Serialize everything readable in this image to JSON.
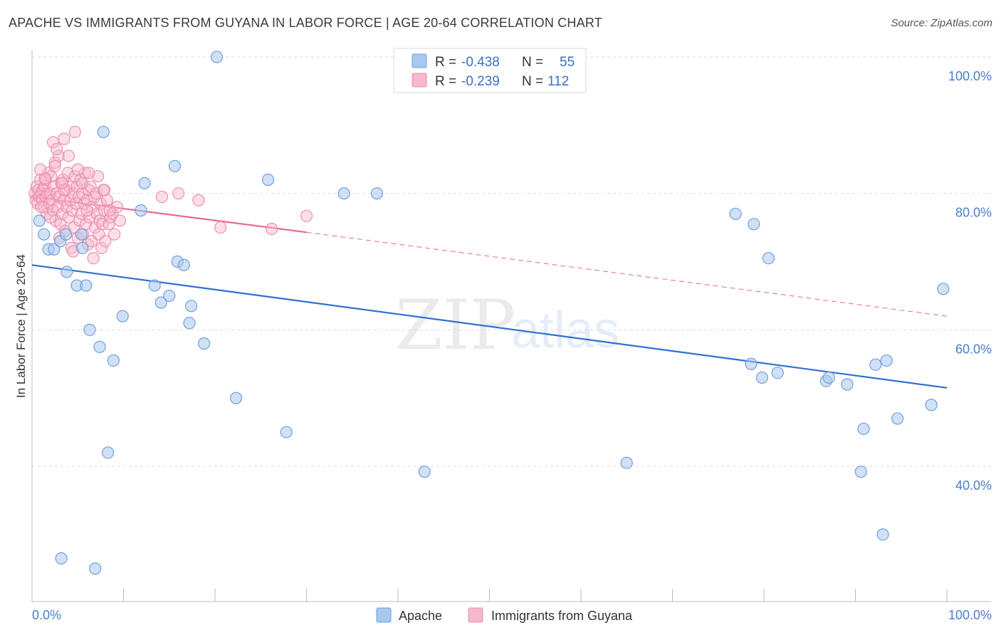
{
  "header": {
    "title": "APACHE VS IMMIGRANTS FROM GUYANA IN LABOR FORCE | AGE 20-64 CORRELATION CHART",
    "source": "Source: ZipAtlas.com"
  },
  "watermark": {
    "part1": "ZIP",
    "part2": "atlas"
  },
  "colors": {
    "apache_fill": "#a9c8f0",
    "apache_stroke": "#6f9fd8",
    "apache_line": "#2f6fcf",
    "guyana_fill": "#f6b8cb",
    "guyana_stroke": "#ec8fae",
    "guyana_line": "#e8679a",
    "grid": "#dddddd",
    "tick_text": "#4a7ccc"
  },
  "legend": {
    "rows": [
      {
        "r_label": "R = ",
        "r_value": "-0.438",
        "n_label": "N = ",
        "n_value": "55"
      },
      {
        "r_label": "R = ",
        "r_value": "-0.239",
        "n_label": "N = ",
        "n_value": "112"
      }
    ]
  },
  "bottom_legend": {
    "apache": "Apache",
    "guyana": "Immigrants from Guyana"
  },
  "chart_data": {
    "type": "scatter",
    "title": "APACHE VS IMMIGRANTS FROM GUYANA IN LABOR FORCE | AGE 20-64 CORRELATION CHART",
    "xlabel": "",
    "ylabel": "In Labor Force | Age 20-64",
    "xlim": [
      0,
      100
    ],
    "ylim": [
      22,
      102
    ],
    "x_tick_labels": [
      "0.0%",
      "100.0%"
    ],
    "y_ticks": [
      40,
      60,
      80,
      100
    ],
    "y_tick_labels": [
      "40.0%",
      "60.0%",
      "80.0%",
      "100.0%"
    ],
    "grid": true,
    "legend_position": "top-center",
    "series": [
      {
        "name": "Apache",
        "R": -0.438,
        "N": 55,
        "trend": {
          "x": [
            0,
            100
          ],
          "y": [
            69.5,
            51.5
          ],
          "extended": false
        },
        "points": [
          [
            0.8,
            76
          ],
          [
            1.3,
            74
          ],
          [
            1.8,
            71.8
          ],
          [
            2.4,
            71.8
          ],
          [
            3.1,
            73
          ],
          [
            3.7,
            74
          ],
          [
            3.8,
            68.5
          ],
          [
            4.9,
            66.5
          ],
          [
            5.9,
            66.5
          ],
          [
            5.4,
            74
          ],
          [
            5.5,
            72
          ],
          [
            6.3,
            60
          ],
          [
            7.4,
            57.5
          ],
          [
            7.8,
            89
          ],
          [
            8.3,
            42
          ],
          [
            8.9,
            55.5
          ],
          [
            9.9,
            62
          ],
          [
            11.9,
            77.5
          ],
          [
            12.3,
            81.5
          ],
          [
            13.4,
            66.5
          ],
          [
            14.1,
            64
          ],
          [
            15.0,
            65
          ],
          [
            15.6,
            84
          ],
          [
            15.9,
            70
          ],
          [
            16.6,
            69.5
          ],
          [
            17.2,
            61
          ],
          [
            17.4,
            63.5
          ],
          [
            18.8,
            58
          ],
          [
            20.2,
            100
          ],
          [
            22.3,
            50
          ],
          [
            25.8,
            82
          ],
          [
            27.8,
            45
          ],
          [
            34.1,
            80
          ],
          [
            37.7,
            80
          ],
          [
            42.9,
            39.2
          ],
          [
            65.0,
            40.5
          ],
          [
            76.9,
            77
          ],
          [
            78.6,
            55
          ],
          [
            78.9,
            75.5
          ],
          [
            79.8,
            53
          ],
          [
            80.5,
            70.5
          ],
          [
            81.5,
            53.7
          ],
          [
            86.8,
            52.5
          ],
          [
            87.1,
            53
          ],
          [
            89.1,
            52
          ],
          [
            90.6,
            39.2
          ],
          [
            90.9,
            45.5
          ],
          [
            92.2,
            54.9
          ],
          [
            93.0,
            30
          ],
          [
            93.4,
            55.5
          ],
          [
            94.6,
            47
          ],
          [
            98.3,
            49
          ],
          [
            99.6,
            66
          ],
          [
            3.2,
            26.5
          ],
          [
            6.9,
            25
          ]
        ]
      },
      {
        "name": "Immigrants from Guyana",
        "R": -0.239,
        "N": 112,
        "trend": {
          "x": [
            0,
            30,
            100
          ],
          "y": [
            79.5,
            74.3,
            62
          ],
          "extended_from": 30
        },
        "points": [
          [
            0.3,
            80
          ],
          [
            0.4,
            79
          ],
          [
            0.5,
            81
          ],
          [
            0.6,
            78.5
          ],
          [
            0.7,
            80.5
          ],
          [
            0.8,
            79.5
          ],
          [
            0.9,
            82
          ],
          [
            1.0,
            80
          ],
          [
            1.1,
            79
          ],
          [
            1.2,
            80.5
          ],
          [
            1.3,
            78
          ],
          [
            1.4,
            81
          ],
          [
            1.5,
            79.5
          ],
          [
            1.6,
            77
          ],
          [
            1.7,
            80
          ],
          [
            1.8,
            83
          ],
          [
            1.9,
            78.5
          ],
          [
            2.0,
            80
          ],
          [
            2.1,
            82.5
          ],
          [
            2.2,
            79
          ],
          [
            2.3,
            77.5
          ],
          [
            2.4,
            81
          ],
          [
            2.5,
            84.5
          ],
          [
            2.6,
            76
          ],
          [
            2.7,
            80
          ],
          [
            2.8,
            78
          ],
          [
            2.9,
            85.5
          ],
          [
            3.0,
            79.5
          ],
          [
            3.1,
            75.5
          ],
          [
            3.2,
            81.5
          ],
          [
            3.3,
            77
          ],
          [
            3.4,
            82
          ],
          [
            3.5,
            79
          ],
          [
            3.6,
            74.5
          ],
          [
            3.7,
            80.5
          ],
          [
            3.8,
            78
          ],
          [
            3.9,
            83
          ],
          [
            4.0,
            76.5
          ],
          [
            4.1,
            81
          ],
          [
            4.2,
            79
          ],
          [
            4.3,
            72
          ],
          [
            4.4,
            77.5
          ],
          [
            4.5,
            80
          ],
          [
            4.6,
            75
          ],
          [
            4.7,
            82.5
          ],
          [
            4.8,
            78.5
          ],
          [
            4.9,
            81
          ],
          [
            5.0,
            73.5
          ],
          [
            5.1,
            79.5
          ],
          [
            5.2,
            76
          ],
          [
            5.3,
            82
          ],
          [
            5.4,
            77
          ],
          [
            5.5,
            80
          ],
          [
            5.6,
            74
          ],
          [
            5.7,
            78.5
          ],
          [
            5.8,
            83
          ],
          [
            5.9,
            75.5
          ],
          [
            6.0,
            79
          ],
          [
            6.1,
            72.5
          ],
          [
            6.2,
            80.5
          ],
          [
            6.3,
            76.5
          ],
          [
            6.4,
            81
          ],
          [
            6.5,
            73
          ],
          [
            6.6,
            78
          ],
          [
            6.7,
            70.5
          ],
          [
            6.8,
            79.5
          ],
          [
            6.9,
            75
          ],
          [
            7.0,
            80
          ],
          [
            7.1,
            77
          ],
          [
            7.2,
            82.5
          ],
          [
            7.3,
            74
          ],
          [
            7.4,
            76
          ],
          [
            7.5,
            78.5
          ],
          [
            7.6,
            72
          ],
          [
            7.7,
            75.5
          ],
          [
            7.8,
            80.5
          ],
          [
            7.9,
            77.5
          ],
          [
            8.0,
            73
          ],
          [
            8.2,
            79
          ],
          [
            8.4,
            75.5
          ],
          [
            8.6,
            76.5
          ],
          [
            8.8,
            77
          ],
          [
            9.0,
            74
          ],
          [
            9.3,
            78
          ],
          [
            9.6,
            76
          ],
          [
            1.0,
            78
          ],
          [
            1.5,
            82
          ],
          [
            2.0,
            76.5
          ],
          [
            2.5,
            84
          ],
          [
            3.0,
            73.5
          ],
          [
            3.5,
            80.5
          ],
          [
            4.0,
            85.5
          ],
          [
            4.5,
            71.5
          ],
          [
            5.0,
            83.5
          ],
          [
            5.5,
            81.5
          ],
          [
            6.0,
            77.5
          ],
          [
            4.7,
            89
          ],
          [
            3.5,
            88
          ],
          [
            2.3,
            87.5
          ],
          [
            6.2,
            83
          ],
          [
            7.9,
            80.5
          ],
          [
            8.5,
            77.5
          ],
          [
            14.2,
            79.5
          ],
          [
            16.0,
            80
          ],
          [
            18.2,
            79
          ],
          [
            20.6,
            75
          ],
          [
            26.2,
            74.8
          ],
          [
            30.0,
            76.7
          ],
          [
            1.4,
            82.2
          ],
          [
            0.9,
            83.5
          ],
          [
            2.7,
            86.5
          ],
          [
            3.3,
            81.5
          ]
        ]
      }
    ]
  }
}
